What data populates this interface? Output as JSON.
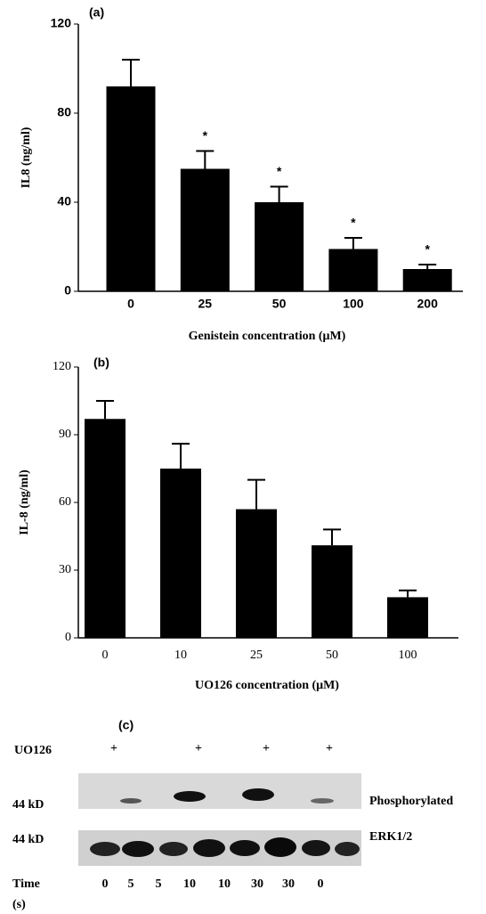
{
  "chart_data": [
    {
      "type": "bar",
      "title": "(a)",
      "y_label": "IL8 (ng/ml)",
      "x_label": "Genistein concentration (μM)",
      "categories": [
        "0",
        "25",
        "50",
        "100",
        "200"
      ],
      "values": [
        92,
        55,
        40,
        19,
        10
      ],
      "errors": [
        12,
        8,
        7,
        5,
        2
      ],
      "significance": [
        null,
        "*",
        "*",
        "*",
        "*"
      ],
      "color": "#000000",
      "ylim": [
        0,
        120
      ],
      "yticks": [
        0,
        40,
        80,
        120
      ]
    },
    {
      "type": "bar",
      "title": "(b)",
      "y_label": "IL-8 (ng/ml)",
      "x_label": "UO126 concentration (μM)",
      "categories": [
        "0",
        "10",
        "25",
        "50",
        "100"
      ],
      "values": [
        97,
        75,
        57,
        41,
        18
      ],
      "errors": [
        8,
        11,
        13,
        7,
        3
      ],
      "color": "#000000",
      "ylim": [
        0,
        120
      ],
      "yticks": [
        0,
        30,
        60,
        90,
        120
      ]
    }
  ],
  "blot": {
    "title": "(c)",
    "treatment_label": "UO126",
    "treatment": [
      "+",
      null,
      null,
      "+",
      null,
      "+",
      null,
      "+"
    ],
    "rows": [
      {
        "size": "44 kD",
        "name": "Phosphorylated"
      },
      {
        "size": "44 kD",
        "name": "ERK1/2"
      }
    ],
    "time_label": "Time",
    "time_unit": "(s)",
    "times": [
      "0",
      "5",
      "5",
      "10",
      "10",
      "30",
      "30",
      "0"
    ]
  }
}
